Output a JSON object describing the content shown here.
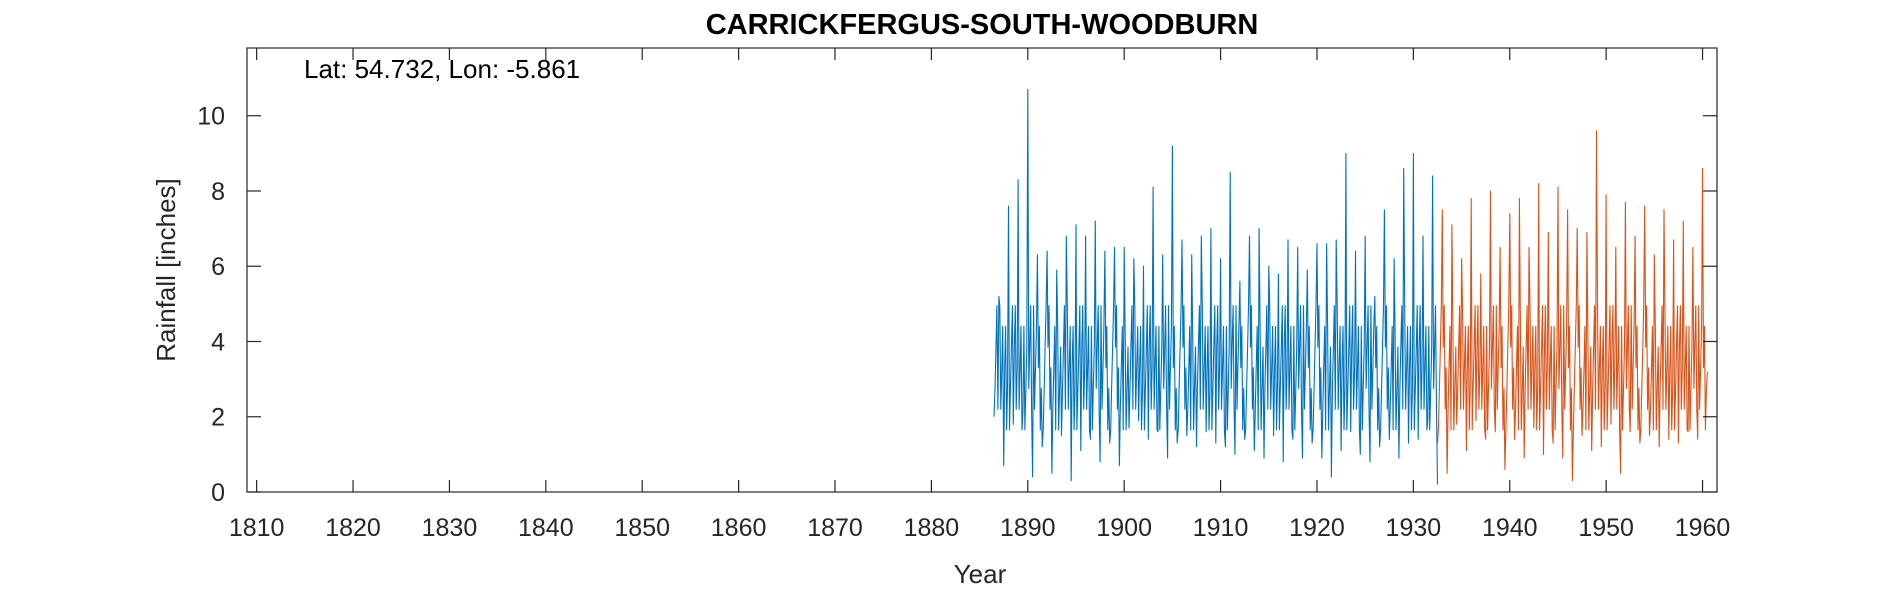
{
  "chart_data": {
    "type": "line",
    "title": "CARRICKFERGUS-SOUTH-WOODBURN",
    "annotation": "Lat: 54.732, Lon: -5.861",
    "xlabel": "Year",
    "ylabel": "Rainfall [inches]",
    "xlim": [
      1809,
      1961.5
    ],
    "ylim": [
      0,
      11.8
    ],
    "xticks": [
      1810,
      1820,
      1830,
      1840,
      1850,
      1860,
      1870,
      1880,
      1890,
      1900,
      1910,
      1920,
      1930,
      1940,
      1950,
      1960
    ],
    "yticks": [
      0,
      2,
      4,
      6,
      8,
      10
    ],
    "grid": false,
    "legend": "none",
    "series": [
      {
        "color": "#0072BD",
        "x": [
          1886.5,
          1887.0,
          1887.5,
          1888.0,
          1888.5,
          1889.0,
          1889.5,
          1890.0,
          1890.5,
          1891.0,
          1891.5,
          1892.0,
          1892.5,
          1893.0,
          1893.5,
          1894.0,
          1894.5,
          1895.0,
          1895.5,
          1896.0,
          1896.5,
          1897.0,
          1897.5,
          1898.0,
          1898.5,
          1899.0,
          1899.5,
          1900.0,
          1900.5,
          1901.0,
          1901.5,
          1902.0,
          1902.5,
          1903.0,
          1903.5,
          1904.0,
          1904.5,
          1905.0,
          1905.5,
          1906.0,
          1906.5,
          1907.0,
          1907.5,
          1908.0,
          1908.5,
          1909.0,
          1909.5,
          1910.0,
          1910.5,
          1911.0,
          1911.5,
          1912.0,
          1912.5,
          1913.0,
          1913.5,
          1914.0,
          1914.5,
          1915.0,
          1915.5,
          1916.0,
          1916.5,
          1917.0,
          1917.5,
          1918.0,
          1918.5,
          1919.0,
          1919.5,
          1920.0,
          1920.5,
          1921.0,
          1921.5,
          1922.0,
          1922.5,
          1923.0,
          1923.5,
          1924.0,
          1924.5,
          1925.0,
          1925.5,
          1926.0,
          1926.5,
          1927.0,
          1927.5,
          1928.0,
          1928.5,
          1929.0,
          1929.5,
          1930.0,
          1930.5,
          1931.0,
          1931.5,
          1932.0,
          1932.5
        ],
        "y": [
          2.0,
          5.2,
          0.7,
          7.6,
          1.8,
          8.3,
          2.2,
          10.7,
          0.4,
          6.3,
          1.2,
          6.4,
          0.5,
          5.9,
          1.5,
          6.8,
          0.3,
          7.1,
          1.1,
          6.8,
          1.4,
          7.2,
          0.8,
          6.4,
          1.3,
          6.5,
          0.7,
          6.5,
          1.7,
          6.2,
          1.9,
          6.0,
          1.4,
          8.1,
          1.6,
          6.3,
          0.9,
          9.2,
          1.3,
          6.7,
          1.5,
          6.3,
          1.2,
          6.8,
          1.6,
          7.0,
          1.3,
          6.2,
          1.2,
          8.5,
          1.0,
          5.6,
          1.4,
          6.8,
          1.1,
          7.0,
          0.9,
          6.0,
          1.5,
          5.8,
          0.8,
          6.7,
          1.4,
          6.5,
          0.9,
          5.9,
          1.3,
          6.6,
          0.9,
          6.6,
          0.4,
          6.7,
          1.1,
          9.0,
          1.6,
          6.4,
          1.0,
          6.8,
          0.8,
          5.2,
          1.2,
          7.5,
          1.4,
          6.2,
          0.9,
          8.6,
          1.3,
          9.0,
          1.4,
          6.8,
          1.9,
          8.4,
          0.2
        ]
      },
      {
        "color": "#D95319",
        "x": [
          1932.5,
          1933.0,
          1933.5,
          1934.0,
          1934.5,
          1935.0,
          1935.5,
          1936.0,
          1936.5,
          1937.0,
          1937.5,
          1938.0,
          1938.5,
          1939.0,
          1939.5,
          1940.0,
          1940.5,
          1941.0,
          1941.5,
          1942.0,
          1942.5,
          1943.0,
          1943.5,
          1944.0,
          1944.5,
          1945.0,
          1945.5,
          1946.0,
          1946.5,
          1947.0,
          1947.5,
          1948.0,
          1948.5,
          1949.0,
          1949.5,
          1950.0,
          1950.5,
          1951.0,
          1951.5,
          1952.0,
          1952.5,
          1953.0,
          1953.5,
          1954.0,
          1954.5,
          1955.0,
          1955.5,
          1956.0,
          1956.5,
          1957.0,
          1957.5,
          1958.0,
          1958.5,
          1959.0,
          1959.5,
          1960.0,
          1960.5
        ],
        "y": [
          1.3,
          7.5,
          0.5,
          7.1,
          1.8,
          6.2,
          1.1,
          7.8,
          1.9,
          5.8,
          1.4,
          8.0,
          1.6,
          6.5,
          0.6,
          7.4,
          1.4,
          7.8,
          0.9,
          6.5,
          1.7,
          8.2,
          1.0,
          6.9,
          1.3,
          8.1,
          0.9,
          7.5,
          0.3,
          7.0,
          1.5,
          6.9,
          1.1,
          9.6,
          1.2,
          7.9,
          1.8,
          6.5,
          0.5,
          7.7,
          1.6,
          6.8,
          1.3,
          7.6,
          1.5,
          6.3,
          1.2,
          7.5,
          1.4,
          6.7,
          1.3,
          7.2,
          1.6,
          6.5,
          1.4,
          8.6,
          3.2
        ]
      }
    ]
  }
}
